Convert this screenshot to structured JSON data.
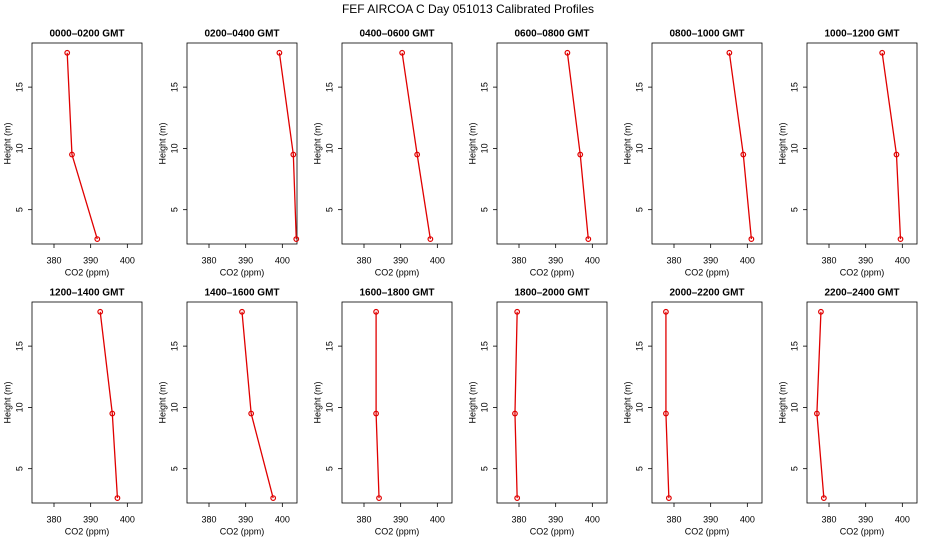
{
  "title": "FEF AIRCOA C  Day 051013  Calibrated Profiles",
  "chart_data": [
    {
      "type": "line",
      "title": "0000–0200 GMT",
      "xlabel": "CO2 (ppm)",
      "ylabel": "Height (m)",
      "xlim": [
        374,
        404
      ],
      "ylim": [
        2.2,
        18.6
      ],
      "xticks": [
        380,
        390,
        400
      ],
      "yticks": [
        5,
        10,
        15
      ],
      "series": [
        {
          "color": "#e00000",
          "x": [
            383.6,
            384.9,
            391.8
          ],
          "values": [
            17.8,
            9.5,
            2.6
          ]
        }
      ]
    },
    {
      "type": "line",
      "title": "0200–0400 GMT",
      "xlabel": "CO2 (ppm)",
      "ylabel": "Height (m)",
      "xlim": [
        374,
        404
      ],
      "ylim": [
        2.2,
        18.6
      ],
      "xticks": [
        380,
        390,
        400
      ],
      "yticks": [
        5,
        10,
        15
      ],
      "series": [
        {
          "color": "#e00000",
          "x": [
            399.2,
            403.0,
            403.8
          ],
          "values": [
            17.8,
            9.5,
            2.6
          ]
        }
      ]
    },
    {
      "type": "line",
      "title": "0400–0600 GMT",
      "xlabel": "CO2 (ppm)",
      "ylabel": "Height (m)",
      "xlim": [
        374,
        404
      ],
      "ylim": [
        2.2,
        18.6
      ],
      "xticks": [
        380,
        390,
        400
      ],
      "yticks": [
        5,
        10,
        15
      ],
      "series": [
        {
          "color": "#e00000",
          "x": [
            390.4,
            394.5,
            398.1
          ],
          "values": [
            17.8,
            9.5,
            2.6
          ]
        }
      ]
    },
    {
      "type": "line",
      "title": "0600–0800 GMT",
      "xlabel": "CO2 (ppm)",
      "ylabel": "Height (m)",
      "xlim": [
        374,
        404
      ],
      "ylim": [
        2.2,
        18.6
      ],
      "xticks": [
        380,
        390,
        400
      ],
      "yticks": [
        5,
        10,
        15
      ],
      "series": [
        {
          "color": "#e00000",
          "x": [
            393.2,
            396.7,
            398.9
          ],
          "values": [
            17.8,
            9.5,
            2.6
          ]
        }
      ]
    },
    {
      "type": "line",
      "title": "0800–1000 GMT",
      "xlabel": "CO2 (ppm)",
      "ylabel": "Height (m)",
      "xlim": [
        374,
        404
      ],
      "ylim": [
        2.2,
        18.6
      ],
      "xticks": [
        380,
        390,
        400
      ],
      "yticks": [
        5,
        10,
        15
      ],
      "series": [
        {
          "color": "#e00000",
          "x": [
            395.1,
            398.9,
            401.1
          ],
          "values": [
            17.8,
            9.5,
            2.6
          ]
        }
      ]
    },
    {
      "type": "line",
      "title": "1000–1200 GMT",
      "xlabel": "CO2 (ppm)",
      "ylabel": "Height (m)",
      "xlim": [
        374,
        404
      ],
      "ylim": [
        2.2,
        18.6
      ],
      "xticks": [
        380,
        390,
        400
      ],
      "yticks": [
        5,
        10,
        15
      ],
      "series": [
        {
          "color": "#e00000",
          "x": [
            394.5,
            398.4,
            399.5
          ],
          "values": [
            17.8,
            9.5,
            2.6
          ]
        }
      ]
    },
    {
      "type": "line",
      "title": "1200–1400 GMT",
      "xlabel": "CO2 (ppm)",
      "ylabel": "Height (m)",
      "xlim": [
        374,
        404
      ],
      "ylim": [
        2.2,
        18.6
      ],
      "xticks": [
        380,
        390,
        400
      ],
      "yticks": [
        5,
        10,
        15
      ],
      "series": [
        {
          "color": "#e00000",
          "x": [
            392.6,
            395.9,
            397.3
          ],
          "values": [
            17.8,
            9.5,
            2.6
          ]
        }
      ]
    },
    {
      "type": "line",
      "title": "1400–1600 GMT",
      "xlabel": "CO2 (ppm)",
      "ylabel": "Height (m)",
      "xlim": [
        374,
        404
      ],
      "ylim": [
        2.2,
        18.6
      ],
      "xticks": [
        380,
        390,
        400
      ],
      "yticks": [
        5,
        10,
        15
      ],
      "series": [
        {
          "color": "#e00000",
          "x": [
            389.0,
            391.5,
            397.5
          ],
          "values": [
            17.8,
            9.5,
            2.6
          ]
        }
      ]
    },
    {
      "type": "line",
      "title": "1600–1800 GMT",
      "xlabel": "CO2 (ppm)",
      "ylabel": "Height (m)",
      "xlim": [
        374,
        404
      ],
      "ylim": [
        2.2,
        18.6
      ],
      "xticks": [
        380,
        390,
        400
      ],
      "yticks": [
        5,
        10,
        15
      ],
      "series": [
        {
          "color": "#e00000",
          "x": [
            383.3,
            383.3,
            384.1
          ],
          "values": [
            17.8,
            9.5,
            2.6
          ]
        }
      ]
    },
    {
      "type": "line",
      "title": "1800–2000 GMT",
      "xlabel": "CO2 (ppm)",
      "ylabel": "Height (m)",
      "xlim": [
        374,
        404
      ],
      "ylim": [
        2.2,
        18.6
      ],
      "xticks": [
        380,
        390,
        400
      ],
      "yticks": [
        5,
        10,
        15
      ],
      "series": [
        {
          "color": "#e00000",
          "x": [
            379.5,
            378.9,
            379.5
          ],
          "values": [
            17.8,
            9.5,
            2.6
          ]
        }
      ]
    },
    {
      "type": "line",
      "title": "2000–2200 GMT",
      "xlabel": "CO2 (ppm)",
      "ylabel": "Height (m)",
      "xlim": [
        374,
        404
      ],
      "ylim": [
        2.2,
        18.6
      ],
      "xticks": [
        380,
        390,
        400
      ],
      "yticks": [
        5,
        10,
        15
      ],
      "series": [
        {
          "color": "#e00000",
          "x": [
            377.8,
            377.8,
            378.6
          ],
          "values": [
            17.8,
            9.5,
            2.6
          ]
        }
      ]
    },
    {
      "type": "line",
      "title": "2200–2400 GMT",
      "xlabel": "CO2 (ppm)",
      "ylabel": "Height (m)",
      "xlim": [
        374,
        404
      ],
      "ylim": [
        2.2,
        18.6
      ],
      "xticks": [
        380,
        390,
        400
      ],
      "yticks": [
        5,
        10,
        15
      ],
      "series": [
        {
          "color": "#e00000",
          "x": [
            377.8,
            376.7,
            378.6
          ],
          "values": [
            17.8,
            9.5,
            2.6
          ]
        }
      ]
    }
  ]
}
